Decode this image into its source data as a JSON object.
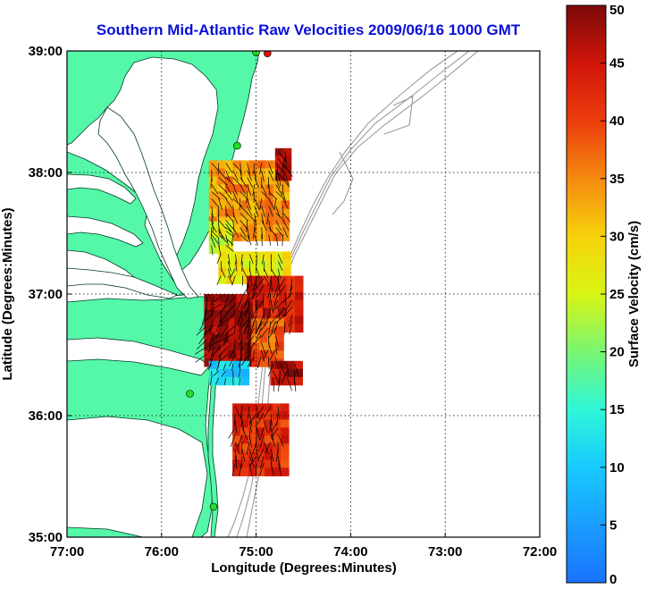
{
  "title": "Southern Mid-Atlantic Raw Velocities 2009/06/16 1000 GMT",
  "x_axis": {
    "label": "Longitude (Degrees:Minutes)",
    "ticks": [
      "77:00",
      "76:00",
      "75:00",
      "74:00",
      "73:00",
      "72:00"
    ]
  },
  "y_axis": {
    "label": "Latitude (Degrees:Minutes)",
    "ticks": [
      "39:00",
      "38:00",
      "37:00",
      "36:00",
      "35:00"
    ]
  },
  "colorbar": {
    "label": "Surface Velocity (cm/s)",
    "ticks": [
      "50",
      "45",
      "40",
      "35",
      "30",
      "25",
      "20",
      "15",
      "10",
      "5",
      "0"
    ],
    "min": 0,
    "max": 50
  },
  "map": {
    "land_color": "#55f7a9",
    "water_color": "#ffffff",
    "bathymetry_color": "#9a9a9a",
    "station_color": "#22dd22",
    "station_alert_color": "#dd1111",
    "lon_range": [
      -77,
      -72
    ],
    "lat_range": [
      35,
      39
    ]
  },
  "velocity_field": [
    {
      "lon_min": -75.5,
      "lon_max": -74.7,
      "lat_min": 37.45,
      "lat_max": 38.1,
      "speed": 34,
      "heading": 160
    },
    {
      "lon_min": -74.8,
      "lon_max": -74.65,
      "lat_min": 37.95,
      "lat_max": 38.2,
      "speed": 48,
      "heading": 170
    },
    {
      "lon_min": -75.5,
      "lon_max": -75.3,
      "lat_min": 37.35,
      "lat_max": 37.6,
      "speed": 26,
      "heading": 150
    },
    {
      "lon_min": -75.4,
      "lon_max": -74.7,
      "lat_min": 37.1,
      "lat_max": 37.35,
      "speed": 27,
      "heading": 180
    },
    {
      "lon_min": -75.1,
      "lon_max": -74.55,
      "lat_min": 36.75,
      "lat_max": 37.15,
      "speed": 44,
      "heading": 200
    },
    {
      "lon_min": -75.55,
      "lon_max": -75.05,
      "lat_min": 36.45,
      "lat_max": 37.0,
      "speed": 49,
      "heading": 210
    },
    {
      "lon_min": -75.05,
      "lon_max": -74.75,
      "lat_min": 36.45,
      "lat_max": 36.8,
      "speed": 38,
      "heading": 190
    },
    {
      "lon_min": -75.5,
      "lon_max": -75.15,
      "lat_min": 36.3,
      "lat_max": 36.45,
      "speed": 11,
      "heading": 200
    },
    {
      "lon_min": -74.85,
      "lon_max": -74.55,
      "lat_min": 36.3,
      "lat_max": 36.45,
      "speed": 47,
      "heading": 180
    },
    {
      "lon_min": -75.25,
      "lon_max": -74.7,
      "lat_min": 35.55,
      "lat_max": 36.1,
      "speed": 42,
      "heading": 185
    }
  ],
  "stations": [
    {
      "lon": -74.88,
      "lat": 38.98,
      "alert": true
    },
    {
      "lon": -75.0,
      "lat": 38.99,
      "alert": false
    },
    {
      "lon": -75.2,
      "lat": 38.22,
      "alert": false
    },
    {
      "lon": -75.7,
      "lat": 36.18,
      "alert": false
    },
    {
      "lon": -75.45,
      "lat": 35.25,
      "alert": false
    }
  ]
}
